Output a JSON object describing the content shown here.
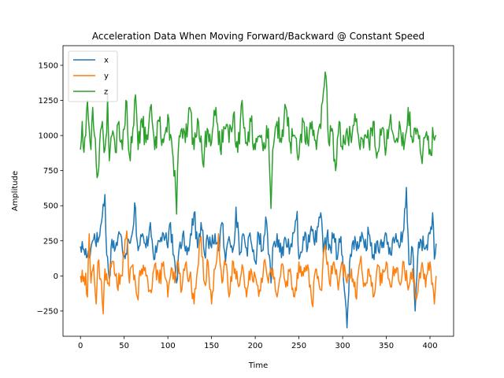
{
  "chart_data": {
    "type": "line",
    "title": "Acceleration Data When Moving Forward/Backward @ Constant Speed",
    "xlabel": "Time",
    "ylabel": "Amplitude",
    "xlim": [
      -20,
      427
    ],
    "ylim": [
      -430,
      1640
    ],
    "xticks": [
      0,
      50,
      100,
      150,
      200,
      250,
      300,
      350,
      400
    ],
    "yticks": [
      -250,
      0,
      250,
      500,
      750,
      1000,
      1250,
      1500
    ],
    "grid": false,
    "legend": "upper-left",
    "n_points": 408,
    "series": [
      {
        "name": "x",
        "color": "#1f77b4",
        "anchors": [
          [
            0,
            210
          ],
          [
            4,
            190
          ],
          [
            8,
            140
          ],
          [
            12,
            200
          ],
          [
            16,
            300
          ],
          [
            20,
            240
          ],
          [
            24,
            380
          ],
          [
            28,
            580
          ],
          [
            30,
            150
          ],
          [
            33,
            -20
          ],
          [
            36,
            260
          ],
          [
            40,
            200
          ],
          [
            45,
            300
          ],
          [
            50,
            150
          ],
          [
            55,
            260
          ],
          [
            60,
            330
          ],
          [
            62,
            520
          ],
          [
            66,
            180
          ],
          [
            70,
            280
          ],
          [
            75,
            200
          ],
          [
            80,
            380
          ],
          [
            85,
            120
          ],
          [
            90,
            250
          ],
          [
            95,
            300
          ],
          [
            100,
            200
          ],
          [
            103,
            380
          ],
          [
            106,
            150
          ],
          [
            110,
            -50
          ],
          [
            113,
            200
          ],
          [
            118,
            320
          ],
          [
            122,
            150
          ],
          [
            126,
            300
          ],
          [
            130,
            450
          ],
          [
            134,
            200
          ],
          [
            138,
            380
          ],
          [
            142,
            150
          ],
          [
            146,
            260
          ],
          [
            150,
            200
          ],
          [
            154,
            300
          ],
          [
            158,
            180
          ],
          [
            162,
            380
          ],
          [
            166,
            100
          ],
          [
            170,
            280
          ],
          [
            175,
            200
          ],
          [
            178,
            490
          ],
          [
            182,
            150
          ],
          [
            186,
            300
          ],
          [
            190,
            200
          ],
          [
            195,
            250
          ],
          [
            200,
            100
          ],
          [
            204,
            300
          ],
          [
            208,
            180
          ],
          [
            212,
            420
          ],
          [
            216,
            150
          ],
          [
            218,
            -50
          ],
          [
            220,
            200
          ],
          [
            225,
            300
          ],
          [
            230,
            130
          ],
          [
            235,
            260
          ],
          [
            240,
            200
          ],
          [
            245,
            320
          ],
          [
            248,
            460
          ],
          [
            250,
            120
          ],
          [
            255,
            280
          ],
          [
            260,
            200
          ],
          [
            265,
            320
          ],
          [
            270,
            240
          ],
          [
            275,
            450
          ],
          [
            278,
            150
          ],
          [
            282,
            280
          ],
          [
            286,
            200
          ],
          [
            290,
            300
          ],
          [
            294,
            120
          ],
          [
            298,
            280
          ],
          [
            302,
            -100
          ],
          [
            305,
            -370
          ],
          [
            308,
            100
          ],
          [
            312,
            250
          ],
          [
            316,
            180
          ],
          [
            320,
            280
          ],
          [
            325,
            200
          ],
          [
            330,
            300
          ],
          [
            335,
            150
          ],
          [
            340,
            250
          ],
          [
            345,
            200
          ],
          [
            350,
            300
          ],
          [
            355,
            150
          ],
          [
            360,
            260
          ],
          [
            365,
            200
          ],
          [
            370,
            330
          ],
          [
            373,
            630
          ],
          [
            376,
            80
          ],
          [
            380,
            200
          ],
          [
            383,
            -250
          ],
          [
            386,
            150
          ],
          [
            390,
            250
          ],
          [
            395,
            200
          ],
          [
            400,
            300
          ],
          [
            403,
            450
          ],
          [
            405,
            120
          ],
          [
            407,
            230
          ]
        ]
      },
      {
        "name": "y",
        "color": "#ff7f0e",
        "anchors": [
          [
            0,
            0
          ],
          [
            3,
            -40
          ],
          [
            6,
            20
          ],
          [
            8,
            -150
          ],
          [
            10,
            300
          ],
          [
            12,
            -50
          ],
          [
            15,
            80
          ],
          [
            18,
            -200
          ],
          [
            20,
            100
          ],
          [
            23,
            -20
          ],
          [
            26,
            -270
          ],
          [
            28,
            50
          ],
          [
            32,
            -50
          ],
          [
            36,
            100
          ],
          [
            40,
            0
          ],
          [
            45,
            -60
          ],
          [
            50,
            150
          ],
          [
            53,
            320
          ],
          [
            56,
            -50
          ],
          [
            60,
            80
          ],
          [
            65,
            -150
          ],
          [
            70,
            50
          ],
          [
            75,
            0
          ],
          [
            80,
            -100
          ],
          [
            85,
            80
          ],
          [
            90,
            -50
          ],
          [
            95,
            100
          ],
          [
            100,
            -150
          ],
          [
            105,
            50
          ],
          [
            108,
            -50
          ],
          [
            112,
            100
          ],
          [
            116,
            -100
          ],
          [
            120,
            80
          ],
          [
            125,
            0
          ],
          [
            130,
            -200
          ],
          [
            134,
            50
          ],
          [
            138,
            280
          ],
          [
            142,
            -50
          ],
          [
            146,
            100
          ],
          [
            150,
            -200
          ],
          [
            154,
            50
          ],
          [
            158,
            300
          ],
          [
            162,
            -50
          ],
          [
            166,
            80
          ],
          [
            170,
            -150
          ],
          [
            175,
            100
          ],
          [
            180,
            -50
          ],
          [
            185,
            80
          ],
          [
            190,
            -150
          ],
          [
            195,
            50
          ],
          [
            200,
            0
          ],
          [
            205,
            -100
          ],
          [
            210,
            100
          ],
          [
            215,
            -50
          ],
          [
            220,
            50
          ],
          [
            225,
            -150
          ],
          [
            230,
            80
          ],
          [
            235,
            -80
          ],
          [
            240,
            50
          ],
          [
            245,
            -150
          ],
          [
            250,
            100
          ],
          [
            255,
            0
          ],
          [
            260,
            80
          ],
          [
            265,
            -200
          ],
          [
            270,
            50
          ],
          [
            275,
            -100
          ],
          [
            280,
            220
          ],
          [
            285,
            -50
          ],
          [
            290,
            100
          ],
          [
            295,
            -100
          ],
          [
            300,
            80
          ],
          [
            305,
            -50
          ],
          [
            310,
            50
          ],
          [
            315,
            -150
          ],
          [
            320,
            100
          ],
          [
            325,
            -50
          ],
          [
            330,
            50
          ],
          [
            335,
            -150
          ],
          [
            340,
            80
          ],
          [
            345,
            -50
          ],
          [
            350,
            100
          ],
          [
            355,
            -80
          ],
          [
            360,
            50
          ],
          [
            365,
            -50
          ],
          [
            370,
            100
          ],
          [
            375,
            -100
          ],
          [
            380,
            50
          ],
          [
            385,
            -150
          ],
          [
            390,
            60
          ],
          [
            395,
            -80
          ],
          [
            400,
            100
          ],
          [
            403,
            -50
          ],
          [
            405,
            -200
          ],
          [
            407,
            0
          ]
        ]
      },
      {
        "name": "z",
        "color": "#2ca02c",
        "anchors": [
          [
            0,
            900
          ],
          [
            2,
            1100
          ],
          [
            4,
            880
          ],
          [
            6,
            1000
          ],
          [
            8,
            1250
          ],
          [
            10,
            1050
          ],
          [
            12,
            900
          ],
          [
            14,
            1200
          ],
          [
            16,
            1000
          ],
          [
            18,
            800
          ],
          [
            20,
            720
          ],
          [
            22,
            950
          ],
          [
            25,
            1100
          ],
          [
            28,
            900
          ],
          [
            30,
            1020
          ],
          [
            31,
            1290
          ],
          [
            33,
            820
          ],
          [
            36,
            1000
          ],
          [
            40,
            880
          ],
          [
            44,
            1100
          ],
          [
            48,
            900
          ],
          [
            52,
            1250
          ],
          [
            56,
            860
          ],
          [
            60,
            1050
          ],
          [
            63,
            1290
          ],
          [
            66,
            900
          ],
          [
            70,
            1120
          ],
          [
            75,
            950
          ],
          [
            80,
            1200
          ],
          [
            85,
            900
          ],
          [
            90,
            1100
          ],
          [
            95,
            950
          ],
          [
            100,
            1150
          ],
          [
            105,
            900
          ],
          [
            108,
            750
          ],
          [
            110,
            440
          ],
          [
            112,
            900
          ],
          [
            116,
            1050
          ],
          [
            120,
            950
          ],
          [
            125,
            1200
          ],
          [
            130,
            900
          ],
          [
            135,
            1100
          ],
          [
            140,
            800
          ],
          [
            145,
            1050
          ],
          [
            150,
            950
          ],
          [
            155,
            1200
          ],
          [
            160,
            900
          ],
          [
            165,
            1050
          ],
          [
            170,
            950
          ],
          [
            175,
            1150
          ],
          [
            180,
            880
          ],
          [
            185,
            1250
          ],
          [
            190,
            950
          ],
          [
            195,
            1100
          ],
          [
            200,
            900
          ],
          [
            205,
            1000
          ],
          [
            210,
            950
          ],
          [
            215,
            1050
          ],
          [
            218,
            480
          ],
          [
            220,
            900
          ],
          [
            225,
            1100
          ],
          [
            230,
            950
          ],
          [
            235,
            1200
          ],
          [
            240,
            950
          ],
          [
            245,
            1000
          ],
          [
            250,
            850
          ],
          [
            255,
            1100
          ],
          [
            260,
            950
          ],
          [
            265,
            1100
          ],
          [
            270,
            900
          ],
          [
            275,
            1050
          ],
          [
            278,
            1310
          ],
          [
            281,
            1420
          ],
          [
            284,
            950
          ],
          [
            288,
            1050
          ],
          [
            292,
            750
          ],
          [
            296,
            1100
          ],
          [
            300,
            900
          ],
          [
            305,
            1050
          ],
          [
            310,
            950
          ],
          [
            315,
            1100
          ],
          [
            320,
            900
          ],
          [
            325,
            1000
          ],
          [
            330,
            950
          ],
          [
            335,
            1100
          ],
          [
            340,
            880
          ],
          [
            345,
            1050
          ],
          [
            350,
            920
          ],
          [
            355,
            1150
          ],
          [
            360,
            950
          ],
          [
            365,
            1100
          ],
          [
            370,
            900
          ],
          [
            375,
            1200
          ],
          [
            380,
            950
          ],
          [
            385,
            1050
          ],
          [
            390,
            850
          ],
          [
            395,
            1000
          ],
          [
            400,
            900
          ],
          [
            404,
            990
          ],
          [
            407,
            1000
          ]
        ]
      }
    ]
  }
}
